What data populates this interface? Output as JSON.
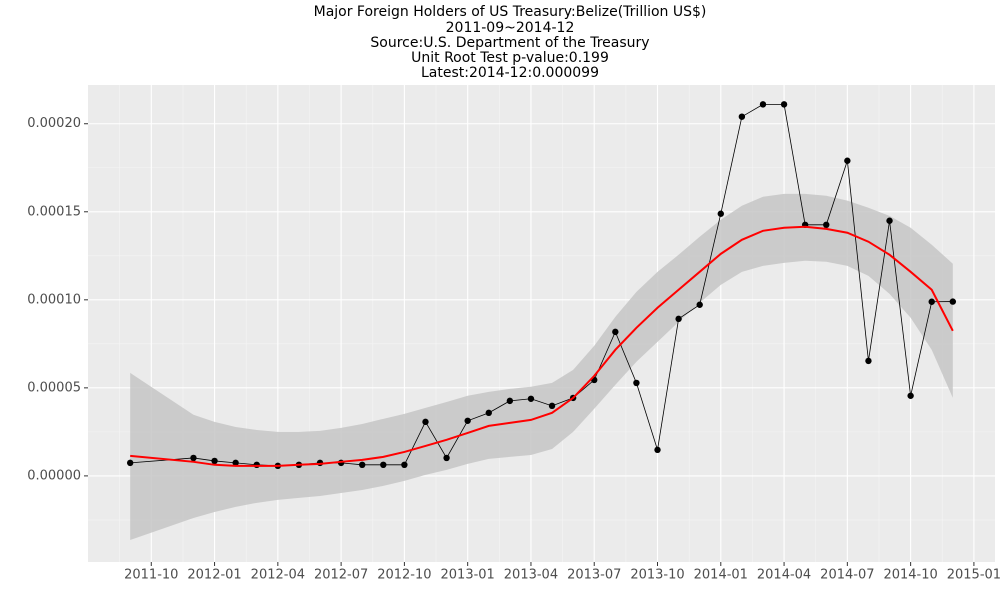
{
  "chart_data": {
    "type": "line",
    "title": "Major Foreign Holders of US Treasury:Belize(Trillion US$)",
    "subtitle": [
      "2011-09~2014-12",
      "Source:U.S. Department of the Treasury",
      "Unit Root Test p-value:0.199",
      "Latest:2014-12:0.000099"
    ],
    "x": [
      "2011-09",
      "2011-12",
      "2012-01",
      "2012-02",
      "2012-03",
      "2012-04",
      "2012-05",
      "2012-06",
      "2012-07",
      "2012-08",
      "2012-09",
      "2012-10",
      "2012-11",
      "2012-12",
      "2013-01",
      "2013-02",
      "2013-03",
      "2013-04",
      "2013-05",
      "2013-06",
      "2013-07",
      "2013-08",
      "2013-09",
      "2013-10",
      "2013-11",
      "2013-12",
      "2014-01",
      "2014-02",
      "2014-03",
      "2014-04",
      "2014-05",
      "2014-06",
      "2014-07",
      "2014-08",
      "2014-09",
      "2014-10",
      "2014-11",
      "2014-12"
    ],
    "values": [
      7.4e-06,
      1.02e-05,
      8.5e-06,
      7.4e-06,
      6.3e-06,
      5.7e-06,
      6.3e-06,
      7.4e-06,
      7.4e-06,
      6.3e-06,
      6.3e-06,
      6.3e-06,
      3.07e-05,
      1.02e-05,
      3.13e-05,
      3.58e-05,
      4.26e-05,
      4.38e-05,
      3.98e-05,
      4.43e-05,
      5.45e-05,
      8.18e-05,
      5.28e-05,
      1.48e-05,
      8.92e-05,
      9.72e-05,
      0.0001489,
      0.000204,
      0.000211,
      0.000211,
      0.0001426,
      0.0001426,
      0.000179,
      6.53e-05,
      0.0001449,
      4.55e-05,
      9.89e-05,
      9.9e-05
    ],
    "smooth": [
      1.14e-05,
      8e-06,
      6.3e-06,
      5.7e-06,
      5.7e-06,
      5.7e-06,
      6.3e-06,
      6.8e-06,
      8e-06,
      9.1e-06,
      1.08e-05,
      1.36e-05,
      1.7e-05,
      2.05e-05,
      2.44e-05,
      2.84e-05,
      3.01e-05,
      3.18e-05,
      3.58e-05,
      4.43e-05,
      5.68e-05,
      7.16e-05,
      8.41e-05,
      9.55e-05,
      0.0001057,
      0.0001159,
      0.0001261,
      0.0001341,
      0.0001392,
      0.0001409,
      0.0001415,
      0.0001403,
      0.0001381,
      0.000133,
      0.0001256,
      0.0001159,
      0.0001057,
      8.24e-05
    ],
    "smooth_lower": [
      -3.64e-05,
      -2.39e-05,
      -2.05e-05,
      -1.76e-05,
      -1.53e-05,
      -1.36e-05,
      -1.25e-05,
      -1.14e-05,
      -9.7e-06,
      -8e-06,
      -5.7e-06,
      -2.8e-06,
      6e-07,
      3.4e-06,
      6.8e-06,
      9.7e-06,
      1.08e-05,
      1.19e-05,
      1.53e-05,
      2.5e-05,
      3.81e-05,
      5.17e-05,
      6.48e-05,
      7.61e-05,
      8.75e-05,
      9.83e-05,
      0.0001085,
      0.0001159,
      0.0001193,
      0.000121,
      0.0001222,
      0.0001216,
      0.0001193,
      0.0001136,
      0.0001034,
      8.98e-05,
      7.16e-05,
      4.43e-05
    ],
    "smooth_upper": [
      5.85e-05,
      3.47e-05,
      3.07e-05,
      2.78e-05,
      2.61e-05,
      2.5e-05,
      2.5e-05,
      2.56e-05,
      2.73e-05,
      2.95e-05,
      3.24e-05,
      3.52e-05,
      3.86e-05,
      4.2e-05,
      4.55e-05,
      4.77e-05,
      4.94e-05,
      5.06e-05,
      5.28e-05,
      6.02e-05,
      7.39e-05,
      9.03e-05,
      0.0001045,
      0.0001159,
      0.0001256,
      0.0001358,
      0.0001455,
      0.0001534,
      0.0001585,
      0.0001602,
      0.0001602,
      0.0001591,
      0.0001563,
      0.0001523,
      0.0001477,
      0.0001409,
      0.0001313,
      0.0001205
    ],
    "color": "#000000",
    "smooth_color": "#ff0000",
    "ribbon_color": "#c6c6c6",
    "xlim": [
      "2011-07",
      "2015-02"
    ],
    "xticks": [
      "2011-10",
      "2012-01",
      "2012-04",
      "2012-07",
      "2012-10",
      "2013-01",
      "2013-04",
      "2013-07",
      "2013-10",
      "2014-01",
      "2014-04",
      "2014-07",
      "2014-10",
      "2015-01"
    ],
    "ylim": [
      -4.89e-05,
      0.000222
    ],
    "yticks": [
      {
        "value": 0,
        "label": "0.00000"
      },
      5e-05,
      {
        "value": 0.0001,
        "label": "0.00010"
      },
      0.00015,
      {
        "value": 0.0002,
        "label": "0.00020"
      }
    ],
    "grid": true
  }
}
